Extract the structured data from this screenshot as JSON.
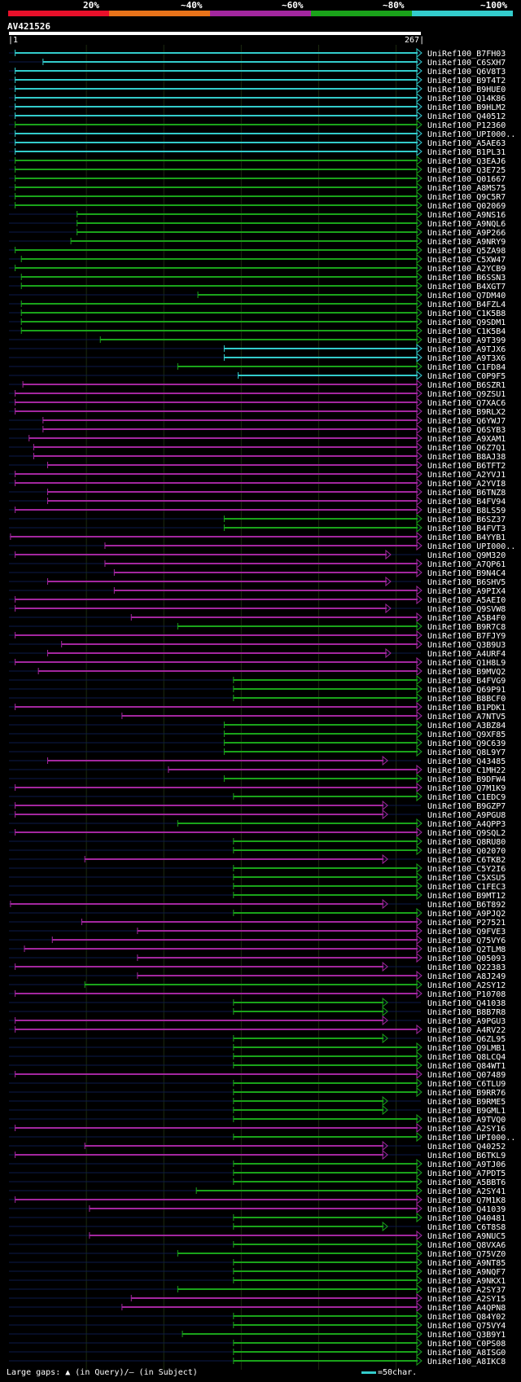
{
  "legend": {
    "labels": [
      "20%",
      "~40%",
      "~60%",
      "~80%",
      "~100%"
    ],
    "colors": [
      "#e8102a",
      "#e8731a",
      "#a3279f",
      "#1aa31a",
      "#33cccc"
    ]
  },
  "query": {
    "name": "AV421526",
    "start": "1",
    "end": "267"
  },
  "footer": {
    "gaps_text": "Large gaps: ▲ (in Query)/— (in Subject)",
    "scale_text": "=50char."
  },
  "chart_data": {
    "type": "alignment-overview",
    "query_length": 267,
    "axis_range": [
      1,
      267
    ],
    "hits": [
      {
        "name": "UniRef100_B7FH03",
        "start": 5,
        "end": 267,
        "identity": "~100%"
      },
      {
        "name": "UniRef100_C6SXH7",
        "start": 23,
        "end": 267,
        "identity": "~100%"
      },
      {
        "name": "UniRef100_Q6V8T3",
        "start": 5,
        "end": 267,
        "identity": "~100%"
      },
      {
        "name": "UniRef100_B9T4T2",
        "start": 5,
        "end": 267,
        "identity": "~100%"
      },
      {
        "name": "UniRef100_B9HUE0",
        "start": 5,
        "end": 267,
        "identity": "~100%"
      },
      {
        "name": "UniRef100_Q14K86",
        "start": 5,
        "end": 267,
        "identity": "~100%"
      },
      {
        "name": "UniRef100_B9HLM2",
        "start": 5,
        "end": 267,
        "identity": "~100%"
      },
      {
        "name": "UniRef100_Q40512",
        "start": 5,
        "end": 267,
        "identity": "~100%"
      },
      {
        "name": "UniRef100_P12360",
        "start": 5,
        "end": 267,
        "identity": "~80%"
      },
      {
        "name": "UniRef100_UPI000..",
        "start": 5,
        "end": 267,
        "identity": "~100%"
      },
      {
        "name": "UniRef100_A5AE63",
        "start": 5,
        "end": 267,
        "identity": "~100%"
      },
      {
        "name": "UniRef100_B1PL31",
        "start": 5,
        "end": 267,
        "identity": "~100%"
      },
      {
        "name": "UniRef100_Q3EAJ6",
        "start": 5,
        "end": 267,
        "identity": "~80%"
      },
      {
        "name": "UniRef100_Q3E725",
        "start": 5,
        "end": 267,
        "identity": "~80%"
      },
      {
        "name": "UniRef100_Q01667",
        "start": 5,
        "end": 267,
        "identity": "~80%"
      },
      {
        "name": "UniRef100_A8MS75",
        "start": 5,
        "end": 267,
        "identity": "~80%"
      },
      {
        "name": "UniRef100_Q9C5R7",
        "start": 5,
        "end": 267,
        "identity": "~80%"
      },
      {
        "name": "UniRef100_Q02069",
        "start": 5,
        "end": 267,
        "identity": "~80%"
      },
      {
        "name": "UniRef100_A9NS16",
        "start": 45,
        "end": 267,
        "identity": "~80%"
      },
      {
        "name": "UniRef100_A9NQL6",
        "start": 45,
        "end": 267,
        "identity": "~80%"
      },
      {
        "name": "UniRef100_A9P266",
        "start": 45,
        "end": 267,
        "identity": "~80%"
      },
      {
        "name": "UniRef100_A9NRY9",
        "start": 41,
        "end": 267,
        "identity": "~80%"
      },
      {
        "name": "UniRef100_Q5ZA98",
        "start": 5,
        "end": 267,
        "identity": "~80%"
      },
      {
        "name": "UniRef100_C5XW47",
        "start": 9,
        "end": 267,
        "identity": "~80%"
      },
      {
        "name": "UniRef100_A2YCB9",
        "start": 5,
        "end": 267,
        "identity": "~80%"
      },
      {
        "name": "UniRef100_B6SSN3",
        "start": 9,
        "end": 267,
        "identity": "~80%"
      },
      {
        "name": "UniRef100_B4XGT7",
        "start": 9,
        "end": 267,
        "identity": "~80%"
      },
      {
        "name": "UniRef100_Q7DM40",
        "start": 123,
        "end": 267,
        "identity": "~80%"
      },
      {
        "name": "UniRef100_B4FZL4",
        "start": 9,
        "end": 267,
        "identity": "~80%"
      },
      {
        "name": "UniRef100_C1K5B8",
        "start": 9,
        "end": 267,
        "identity": "~80%"
      },
      {
        "name": "UniRef100_Q9SDM1",
        "start": 9,
        "end": 267,
        "identity": "~80%"
      },
      {
        "name": "UniRef100_C1K5B4",
        "start": 9,
        "end": 267,
        "identity": "~80%"
      },
      {
        "name": "UniRef100_A9T399",
        "start": 60,
        "end": 267,
        "identity": "~80%"
      },
      {
        "name": "UniRef100_A9TJX6",
        "start": 140,
        "end": 267,
        "identity": "~100%"
      },
      {
        "name": "UniRef100_A9T3X6",
        "start": 140,
        "end": 267,
        "identity": "~100%"
      },
      {
        "name": "UniRef100_C1FD84",
        "start": 110,
        "end": 267,
        "identity": "~80%"
      },
      {
        "name": "UniRef100_C0P9F5",
        "start": 149,
        "end": 267,
        "identity": "~100%"
      },
      {
        "name": "UniRef100_B6SZR1",
        "start": 10,
        "end": 267,
        "identity": "~60%"
      },
      {
        "name": "UniRef100_Q9ZSU1",
        "start": 5,
        "end": 267,
        "identity": "~60%"
      },
      {
        "name": "UniRef100_Q7XAC6",
        "start": 5,
        "end": 267,
        "identity": "~60%"
      },
      {
        "name": "UniRef100_B9RLX2",
        "start": 5,
        "end": 267,
        "identity": "~60%"
      },
      {
        "name": "UniRef100_Q6YWJ7",
        "start": 23,
        "end": 267,
        "identity": "~60%"
      },
      {
        "name": "UniRef100_Q6SYB3",
        "start": 23,
        "end": 267,
        "identity": "~60%"
      },
      {
        "name": "UniRef100_A9XAM1",
        "start": 14,
        "end": 267,
        "identity": "~60%"
      },
      {
        "name": "UniRef100_Q6Z7Q1",
        "start": 17,
        "end": 267,
        "identity": "~60%"
      },
      {
        "name": "UniRef100_B8AJ38",
        "start": 17,
        "end": 267,
        "identity": "~60%"
      },
      {
        "name": "UniRef100_B6TFT2",
        "start": 26,
        "end": 267,
        "identity": "~60%"
      },
      {
        "name": "UniRef100_A2YVJ1",
        "start": 5,
        "end": 267,
        "identity": "~60%"
      },
      {
        "name": "UniRef100_A2YVI8",
        "start": 5,
        "end": 267,
        "identity": "~60%"
      },
      {
        "name": "UniRef100_B6TNZ8",
        "start": 26,
        "end": 267,
        "identity": "~60%"
      },
      {
        "name": "UniRef100_B4FV94",
        "start": 26,
        "end": 267,
        "identity": "~60%"
      },
      {
        "name": "UniRef100_B8LS59",
        "start": 5,
        "end": 267,
        "identity": "~60%"
      },
      {
        "name": "UniRef100_B6SZ37",
        "start": 140,
        "end": 267,
        "identity": "~80%"
      },
      {
        "name": "UniRef100_B4FVT3",
        "start": 140,
        "end": 267,
        "identity": "~80%"
      },
      {
        "name": "UniRef100_B4YYB1",
        "start": 2,
        "end": 267,
        "identity": "~60%"
      },
      {
        "name": "UniRef100_UPI000..",
        "start": 63,
        "end": 267,
        "identity": "~60%"
      },
      {
        "name": "UniRef100_Q9M320",
        "start": 5,
        "end": 247,
        "identity": "~60%"
      },
      {
        "name": "UniRef100_A7QP61",
        "start": 63,
        "end": 267,
        "identity": "~60%"
      },
      {
        "name": "UniRef100_B9N4C4",
        "start": 69,
        "end": 267,
        "identity": "~60%"
      },
      {
        "name": "UniRef100_B6SHV5",
        "start": 26,
        "end": 247,
        "identity": "~60%"
      },
      {
        "name": "UniRef100_A9PIX4",
        "start": 69,
        "end": 267,
        "identity": "~60%"
      },
      {
        "name": "UniRef100_A5AEI0",
        "start": 5,
        "end": 267,
        "identity": "~60%"
      },
      {
        "name": "UniRef100_Q9SVW8",
        "start": 5,
        "end": 247,
        "identity": "~60%"
      },
      {
        "name": "UniRef100_A5B4F0",
        "start": 80,
        "end": 267,
        "identity": "~60%"
      },
      {
        "name": "UniRef100_B9R7C8",
        "start": 110,
        "end": 267,
        "identity": "~80%"
      },
      {
        "name": "UniRef100_B7FJY9",
        "start": 5,
        "end": 267,
        "identity": "~60%"
      },
      {
        "name": "UniRef100_Q3B9U3",
        "start": 35,
        "end": 267,
        "identity": "~60%"
      },
      {
        "name": "UniRef100_A4URF4",
        "start": 26,
        "end": 247,
        "identity": "~60%"
      },
      {
        "name": "UniRef100_Q1H8L9",
        "start": 5,
        "end": 267,
        "identity": "~60%"
      },
      {
        "name": "UniRef100_B9MVQ2",
        "start": 20,
        "end": 267,
        "identity": "~60%"
      },
      {
        "name": "UniRef100_B4FVG9",
        "start": 146,
        "end": 267,
        "identity": "~80%"
      },
      {
        "name": "UniRef100_Q69P91",
        "start": 146,
        "end": 267,
        "identity": "~80%"
      },
      {
        "name": "UniRef100_B8BCF0",
        "start": 146,
        "end": 267,
        "identity": "~80%"
      },
      {
        "name": "UniRef100_B1PDK1",
        "start": 5,
        "end": 267,
        "identity": "~60%"
      },
      {
        "name": "UniRef100_A7NTV5",
        "start": 74,
        "end": 267,
        "identity": "~60%"
      },
      {
        "name": "UniRef100_A3BZ84",
        "start": 140,
        "end": 267,
        "identity": "~80%"
      },
      {
        "name": "UniRef100_Q9XF85",
        "start": 140,
        "end": 267,
        "identity": "~80%"
      },
      {
        "name": "UniRef100_Q9C639",
        "start": 140,
        "end": 267,
        "identity": "~80%"
      },
      {
        "name": "UniRef100_Q8L9Y7",
        "start": 140,
        "end": 267,
        "identity": "~80%"
      },
      {
        "name": "UniRef100_Q43485",
        "start": 26,
        "end": 245,
        "identity": "~60%"
      },
      {
        "name": "UniRef100_C1MH22",
        "start": 104,
        "end": 267,
        "identity": "~60%"
      },
      {
        "name": "UniRef100_B9DFW4",
        "start": 140,
        "end": 267,
        "identity": "~80%"
      },
      {
        "name": "UniRef100_Q7M1K9",
        "start": 5,
        "end": 267,
        "identity": "~60%"
      },
      {
        "name": "UniRef100_C1EDC9",
        "start": 146,
        "end": 267,
        "identity": "~80%"
      },
      {
        "name": "UniRef100_B9GZP7",
        "start": 5,
        "end": 245,
        "identity": "~60%"
      },
      {
        "name": "UniRef100_A9PGU8",
        "start": 5,
        "end": 245,
        "identity": "~60%"
      },
      {
        "name": "UniRef100_A4QPP3",
        "start": 110,
        "end": 267,
        "identity": "~80%"
      },
      {
        "name": "UniRef100_Q9SQL2",
        "start": 5,
        "end": 267,
        "identity": "~60%"
      },
      {
        "name": "UniRef100_Q8RU80",
        "start": 146,
        "end": 267,
        "identity": "~80%"
      },
      {
        "name": "UniRef100_Q02070",
        "start": 146,
        "end": 267,
        "identity": "~80%"
      },
      {
        "name": "UniRef100_C6TKB2",
        "start": 50,
        "end": 245,
        "identity": "~60%"
      },
      {
        "name": "UniRef100_C5Y2I6",
        "start": 146,
        "end": 267,
        "identity": "~80%"
      },
      {
        "name": "UniRef100_C5XSU5",
        "start": 146,
        "end": 267,
        "identity": "~80%"
      },
      {
        "name": "UniRef100_C1FEC3",
        "start": 146,
        "end": 267,
        "identity": "~80%"
      },
      {
        "name": "UniRef100_B9MT12",
        "start": 146,
        "end": 267,
        "identity": "~80%"
      },
      {
        "name": "UniRef100_B6T892",
        "start": 2,
        "end": 245,
        "identity": "~60%"
      },
      {
        "name": "UniRef100_A9PJQ2",
        "start": 146,
        "end": 267,
        "identity": "~80%"
      },
      {
        "name": "UniRef100_P27521",
        "start": 48,
        "end": 267,
        "identity": "~60%"
      },
      {
        "name": "UniRef100_Q9FVE3",
        "start": 84,
        "end": 267,
        "identity": "~60%"
      },
      {
        "name": "UniRef100_Q75VY6",
        "start": 29,
        "end": 267,
        "identity": "~60%"
      },
      {
        "name": "UniRef100_Q2TLM8",
        "start": 11,
        "end": 267,
        "identity": "~60%"
      },
      {
        "name": "UniRef100_Q05093",
        "start": 84,
        "end": 267,
        "identity": "~60%"
      },
      {
        "name": "UniRef100_Q22383",
        "start": 5,
        "end": 245,
        "identity": "~60%"
      },
      {
        "name": "UniRef100_A8J249",
        "start": 84,
        "end": 267,
        "identity": "~60%"
      },
      {
        "name": "UniRef100_A2SY12",
        "start": 50,
        "end": 267,
        "identity": "~80%"
      },
      {
        "name": "UniRef100_P10708",
        "start": 5,
        "end": 267,
        "identity": "~60%"
      },
      {
        "name": "UniRef100_Q41038",
        "start": 146,
        "end": 245,
        "identity": "~80%"
      },
      {
        "name": "UniRef100_B8B7R8",
        "start": 146,
        "end": 245,
        "identity": "~80%"
      },
      {
        "name": "UniRef100_A9PGU3",
        "start": 5,
        "end": 245,
        "identity": "~60%"
      },
      {
        "name": "UniRef100_A4RV22",
        "start": 5,
        "end": 267,
        "identity": "~60%"
      },
      {
        "name": "UniRef100_Q6ZL95",
        "start": 146,
        "end": 245,
        "identity": "~80%"
      },
      {
        "name": "UniRef100_Q9LMB1",
        "start": 146,
        "end": 267,
        "identity": "~80%"
      },
      {
        "name": "UniRef100_Q8LCQ4",
        "start": 146,
        "end": 267,
        "identity": "~80%"
      },
      {
        "name": "UniRef100_Q84WT1",
        "start": 146,
        "end": 267,
        "identity": "~80%"
      },
      {
        "name": "UniRef100_Q07489",
        "start": 5,
        "end": 267,
        "identity": "~60%"
      },
      {
        "name": "UniRef100_C6TLU9",
        "start": 146,
        "end": 267,
        "identity": "~80%"
      },
      {
        "name": "UniRef100_B9RR76",
        "start": 146,
        "end": 267,
        "identity": "~80%"
      },
      {
        "name": "UniRef100_B9RME5",
        "start": 146,
        "end": 245,
        "identity": "~80%"
      },
      {
        "name": "UniRef100_B9GML1",
        "start": 146,
        "end": 245,
        "identity": "~80%"
      },
      {
        "name": "UniRef100_A9TVQ0",
        "start": 146,
        "end": 267,
        "identity": "~80%"
      },
      {
        "name": "UniRef100_A2SY16",
        "start": 5,
        "end": 267,
        "identity": "~60%"
      },
      {
        "name": "UniRef100_UPI000..",
        "start": 146,
        "end": 267,
        "identity": "~80%"
      },
      {
        "name": "UniRef100_Q40252",
        "start": 50,
        "end": 245,
        "identity": "~60%"
      },
      {
        "name": "UniRef100_B6TKL9",
        "start": 5,
        "end": 245,
        "identity": "~60%"
      },
      {
        "name": "UniRef100_A9TJ06",
        "start": 146,
        "end": 267,
        "identity": "~80%"
      },
      {
        "name": "UniRef100_A7PDT5",
        "start": 146,
        "end": 267,
        "identity": "~80%"
      },
      {
        "name": "UniRef100_A5BBT6",
        "start": 146,
        "end": 267,
        "identity": "~80%"
      },
      {
        "name": "UniRef100_A2SY41",
        "start": 122,
        "end": 267,
        "identity": "~80%"
      },
      {
        "name": "UniRef100_Q7M1K8",
        "start": 5,
        "end": 267,
        "identity": "~60%"
      },
      {
        "name": "UniRef100_Q41039",
        "start": 53,
        "end": 267,
        "identity": "~60%"
      },
      {
        "name": "UniRef100_Q40481",
        "start": 146,
        "end": 267,
        "identity": "~80%"
      },
      {
        "name": "UniRef100_C6T8S8",
        "start": 146,
        "end": 245,
        "identity": "~80%"
      },
      {
        "name": "UniRef100_A9NUC5",
        "start": 53,
        "end": 267,
        "identity": "~60%"
      },
      {
        "name": "UniRef100_Q8VXA6",
        "start": 146,
        "end": 267,
        "identity": "~80%"
      },
      {
        "name": "UniRef100_Q75VZ0",
        "start": 110,
        "end": 267,
        "identity": "~80%"
      },
      {
        "name": "UniRef100_A9NT85",
        "start": 146,
        "end": 267,
        "identity": "~80%"
      },
      {
        "name": "UniRef100_A9NQF7",
        "start": 146,
        "end": 267,
        "identity": "~80%"
      },
      {
        "name": "UniRef100_A9NKX1",
        "start": 146,
        "end": 267,
        "identity": "~80%"
      },
      {
        "name": "UniRef100_A2SY37",
        "start": 110,
        "end": 267,
        "identity": "~80%"
      },
      {
        "name": "UniRef100_A2SY15",
        "start": 80,
        "end": 267,
        "identity": "~60%"
      },
      {
        "name": "UniRef100_A4QPN8",
        "start": 74,
        "end": 267,
        "identity": "~60%"
      },
      {
        "name": "UniRef100_Q84Y02",
        "start": 146,
        "end": 267,
        "identity": "~80%"
      },
      {
        "name": "UniRef100_Q75VY4",
        "start": 146,
        "end": 267,
        "identity": "~80%"
      },
      {
        "name": "UniRef100_Q3B9Y1",
        "start": 113,
        "end": 267,
        "identity": "~80%"
      },
      {
        "name": "UniRef100_C0PS08",
        "start": 146,
        "end": 267,
        "identity": "~80%"
      },
      {
        "name": "UniRef100_A8ISG0",
        "start": 146,
        "end": 267,
        "identity": "~80%"
      },
      {
        "name": "UniRef100_A8IKC8",
        "start": 146,
        "end": 267,
        "identity": "~80%"
      }
    ]
  }
}
